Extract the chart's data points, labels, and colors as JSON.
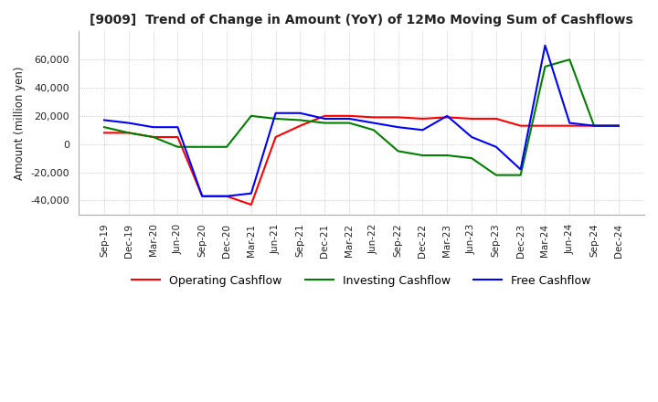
{
  "title": "[9009]  Trend of Change in Amount (YoY) of 12Mo Moving Sum of Cashflows",
  "ylabel": "Amount (million yen)",
  "xlabels": [
    "Sep-19",
    "Dec-19",
    "Mar-20",
    "Jun-20",
    "Sep-20",
    "Dec-20",
    "Mar-21",
    "Jun-21",
    "Sep-21",
    "Dec-21",
    "Mar-22",
    "Jun-22",
    "Sep-22",
    "Dec-22",
    "Mar-23",
    "Jun-23",
    "Sep-23",
    "Dec-23",
    "Mar-24",
    "Jun-24",
    "Sep-24",
    "Dec-24"
  ],
  "operating": [
    8000,
    8000,
    5000,
    5000,
    -37000,
    -37000,
    -43000,
    5000,
    13000,
    20000,
    20000,
    19000,
    19000,
    18000,
    19000,
    18000,
    18000,
    13000,
    13000,
    13000,
    13000,
    13000
  ],
  "investing": [
    12000,
    8000,
    5000,
    -2000,
    -2000,
    -2000,
    20000,
    18000,
    17000,
    15000,
    15000,
    10000,
    -5000,
    -8000,
    -8000,
    -10000,
    -22000,
    -22000,
    55000,
    60000,
    13000,
    13000
  ],
  "free": [
    17000,
    15000,
    12000,
    12000,
    -37000,
    -37000,
    -35000,
    22000,
    22000,
    18000,
    18000,
    15000,
    12000,
    10000,
    20000,
    5000,
    -2000,
    -18000,
    70000,
    15000,
    13000,
    13000
  ],
  "operating_color": "#ff0000",
  "investing_color": "#008000",
  "free_color": "#0000ff",
  "ylim": [
    -50000,
    80000
  ],
  "yticks": [
    -40000,
    -20000,
    0,
    20000,
    40000,
    60000
  ],
  "background_color": "#ffffff",
  "grid_color": "#aaaaaa"
}
